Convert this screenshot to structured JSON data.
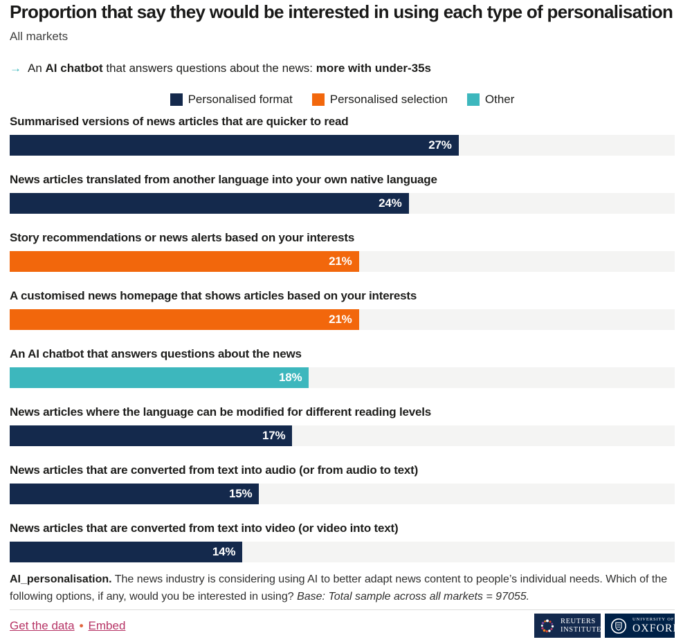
{
  "header": {
    "title": "Proportion that say they would be interested in using each type of personalisation",
    "subtitle": "All markets",
    "callout": {
      "arrow": "→",
      "prefix": "An ",
      "bold1": "AI chatbot",
      "middle": " that answers questions about the news: ",
      "bold2": "more with under-35s"
    }
  },
  "legend": [
    {
      "label": "Personalised format",
      "color": "#14294c"
    },
    {
      "label": "Personalised selection",
      "color": "#f2670c"
    },
    {
      "label": "Other",
      "color": "#3db7bd"
    }
  ],
  "chart_data": {
    "type": "bar",
    "orientation": "horizontal",
    "xlim": [
      0,
      40
    ],
    "grid": false,
    "legend_position": "top-center",
    "categories": [
      "Summarised versions of news articles that are quicker to read",
      "News articles translated from another language into your own native language",
      "Story recommendations or news alerts based on your interests",
      "A customised news homepage that shows articles based on your interests",
      "An AI chatbot that answers questions about the news",
      "News articles where the language can be modified for different reading levels",
      "News articles that are converted from text into audio (or from audio to text)",
      "News articles that are converted from text into video (or video into text)"
    ],
    "values": [
      27,
      24,
      21,
      21,
      18,
      17,
      15,
      14
    ],
    "value_labels": [
      "27%",
      "24%",
      "21%",
      "21%",
      "18%",
      "17%",
      "15%",
      "14%"
    ],
    "series_of_bar": [
      "Personalised format",
      "Personalised format",
      "Personalised selection",
      "Personalised selection",
      "Other",
      "Personalised format",
      "Personalised format",
      "Personalised format"
    ],
    "bar_colors": [
      "#14294c",
      "#14294c",
      "#f2670c",
      "#f2670c",
      "#3db7bd",
      "#14294c",
      "#14294c",
      "#14294c"
    ],
    "track_color": "#f4f4f3"
  },
  "footer": {
    "bold": "AI_personalisation.",
    "text": " The news industry is considering using AI to better adapt news content to people’s individual needs. Which of the following options, if any, would you be interested in using? ",
    "italic": "Base: Total sample across all markets = 97055.",
    "links": [
      {
        "label": "Get the data"
      },
      {
        "label": "Embed"
      }
    ],
    "separator": "•",
    "logos": [
      {
        "line1": "REUTERS",
        "line2": "INSTITUTE"
      },
      {
        "line1": "UNIVERSITY OF",
        "line2": "OXFORD"
      }
    ]
  },
  "colors": {
    "navy": "#14294c",
    "orange": "#f2670c",
    "teal": "#3db7bd",
    "track": "#f4f4f3",
    "link": "#b63365",
    "bullet": "#e0643c",
    "reuters_box": "#13294d",
    "oxford_box": "#002147"
  }
}
